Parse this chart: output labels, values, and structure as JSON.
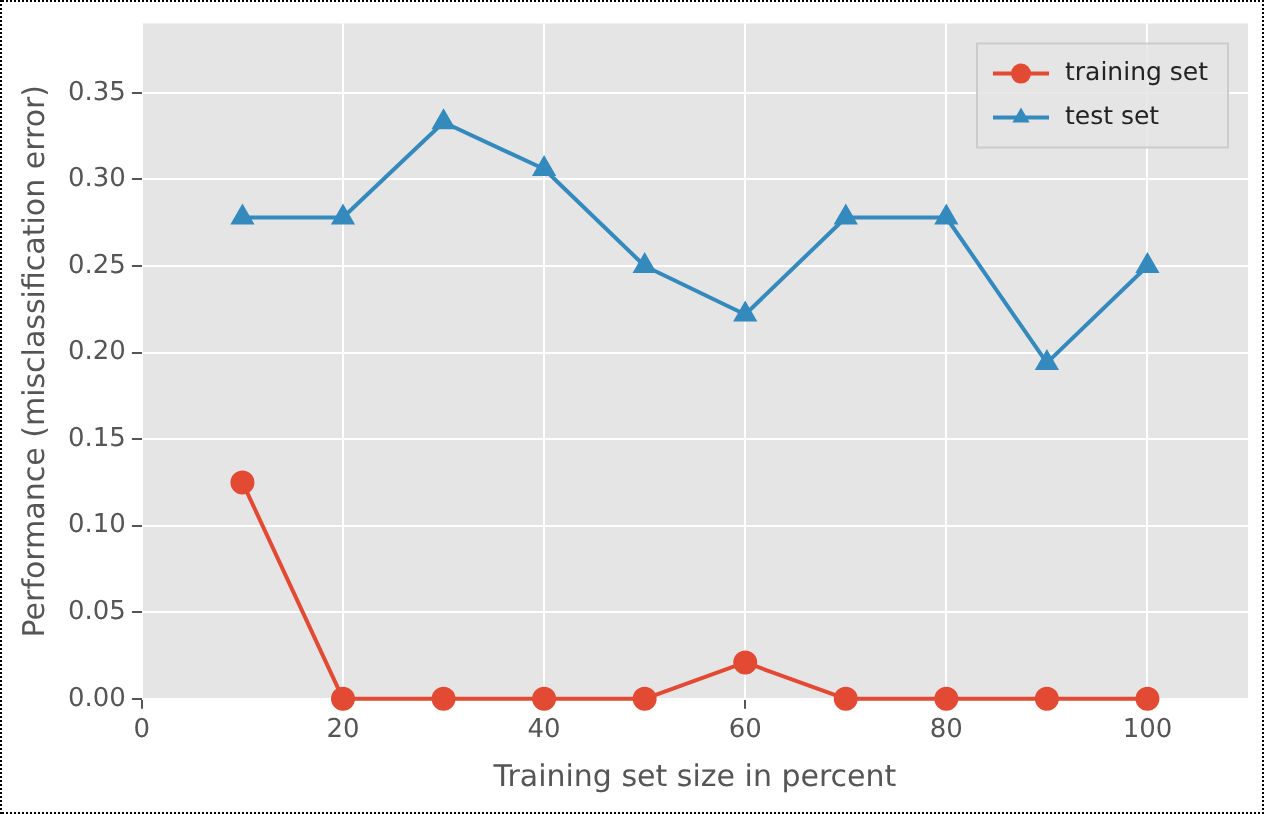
{
  "chart_data": {
    "type": "line",
    "xlabel": "Training set size in percent",
    "ylabel": "Performance (misclassification error)",
    "x": [
      10,
      20,
      30,
      40,
      50,
      60,
      70,
      80,
      90,
      100
    ],
    "series": [
      {
        "name": "training set",
        "color": "#e24a33",
        "marker": "circle",
        "values": [
          0.125,
          0,
          0,
          0,
          0,
          0.021,
          0,
          0,
          0,
          0
        ]
      },
      {
        "name": "test set",
        "color": "#348abd",
        "marker": "triangle",
        "values": [
          0.278,
          0.278,
          0.333,
          0.306,
          0.25,
          0.222,
          0.278,
          0.278,
          0.194,
          0.25
        ]
      }
    ],
    "xlim": [
      0,
      110
    ],
    "xticks": [
      0,
      20,
      40,
      60,
      80,
      100
    ],
    "ylim": [
      0,
      0.39
    ],
    "yticks": [
      {
        "value": 0,
        "label": "0.00"
      },
      {
        "value": 0.05,
        "label": "0.05"
      },
      {
        "value": 0.1,
        "label": "0.10"
      },
      {
        "value": 0.15,
        "label": "0.15"
      },
      {
        "value": 0.2,
        "label": "0.20"
      },
      {
        "value": 0.25,
        "label": "0.25"
      },
      {
        "value": 0.3,
        "label": "0.30"
      },
      {
        "value": 0.35,
        "label": "0.35"
      }
    ],
    "grid": true,
    "legend": "top right",
    "line_style": "solid"
  }
}
